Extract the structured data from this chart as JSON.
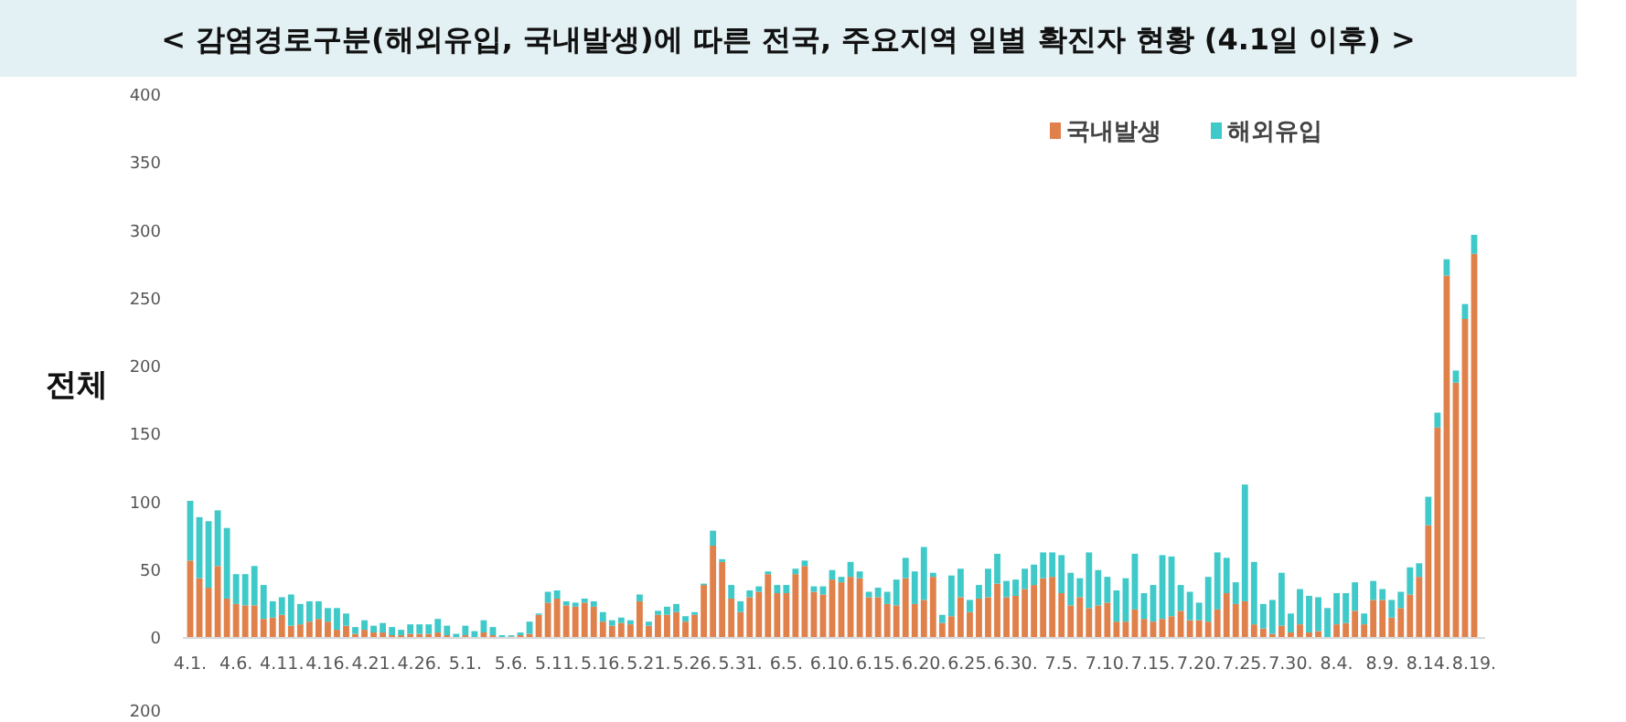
{
  "chart_data": {
    "type": "bar",
    "stacked": true,
    "title": "< 감염경로구분(해외유입, 국내발생)에 따른 전국, 주요지역 일별 확진자 현황 (4.1일 이후) >",
    "ylabel": "전체",
    "categories": [
      "4.1.",
      null,
      null,
      null,
      null,
      "4.6.",
      null,
      null,
      null,
      null,
      "4.11.",
      null,
      null,
      null,
      null,
      "4.16.",
      null,
      null,
      null,
      null,
      "4.21.",
      null,
      null,
      null,
      null,
      "4.26.",
      null,
      null,
      null,
      null,
      "5.1.",
      null,
      null,
      null,
      null,
      "5.6.",
      null,
      null,
      null,
      null,
      "5.11.",
      null,
      null,
      null,
      null,
      "5.16.",
      null,
      null,
      null,
      null,
      "5.21.",
      null,
      null,
      null,
      null,
      "5.26.",
      null,
      null,
      null,
      null,
      "5.31.",
      null,
      null,
      null,
      null,
      "6.5.",
      null,
      null,
      null,
      null,
      "6.10.",
      null,
      null,
      null,
      null,
      "6.15.",
      null,
      null,
      null,
      null,
      "6.20.",
      null,
      null,
      null,
      null,
      "6.25.",
      null,
      null,
      null,
      null,
      "6.30.",
      null,
      null,
      null,
      null,
      "7.5.",
      null,
      null,
      null,
      null,
      "7.10.",
      null,
      null,
      null,
      null,
      "7.15.",
      null,
      null,
      null,
      null,
      "7.20.",
      null,
      null,
      null,
      null,
      "7.25.",
      null,
      null,
      null,
      null,
      "7.30.",
      null,
      null,
      null,
      null,
      "8.4.",
      null,
      null,
      null,
      null,
      "8.9.",
      null,
      null,
      null,
      null,
      "8.14.",
      null,
      null,
      null,
      null,
      "8.19."
    ],
    "series": [
      {
        "name": "국내발생",
        "color": "#e0804a",
        "values": [
          57,
          44,
          37,
          53,
          29,
          25,
          24,
          24,
          14,
          15,
          17,
          9,
          10,
          12,
          14,
          12,
          6,
          9,
          3,
          6,
          4,
          4,
          2,
          2,
          3,
          3,
          3,
          4,
          2,
          null,
          2,
          null,
          4,
          2,
          null,
          1,
          2,
          3,
          17,
          26,
          29,
          24,
          23,
          26,
          23,
          12,
          9,
          11,
          10,
          27,
          9,
          17,
          17,
          19,
          12,
          17,
          39,
          68,
          56,
          29,
          19,
          30,
          34,
          47,
          33,
          33,
          47,
          53,
          34,
          32,
          43,
          41,
          45,
          44,
          30,
          30,
          25,
          24,
          44,
          25,
          28,
          45,
          11,
          16,
          30,
          19,
          29,
          30,
          40,
          30,
          31,
          36,
          39,
          44,
          45,
          33,
          24,
          30,
          22,
          24,
          26,
          12,
          12,
          21,
          14,
          12,
          14,
          16,
          20,
          13,
          13,
          12,
          21,
          33,
          25,
          27,
          10,
          7,
          3,
          9,
          4,
          10,
          4,
          5,
          null,
          10,
          11,
          20,
          10,
          28,
          28,
          15,
          22,
          32,
          45,
          83,
          155,
          267,
          188,
          235,
          283
        ]
      },
      {
        "name": "해외유입",
        "color": "#3fc9c9",
        "values": [
          44,
          45,
          49,
          41,
          52,
          22,
          23,
          29,
          25,
          12,
          13,
          23,
          15,
          15,
          13,
          10,
          16,
          9,
          5,
          7,
          5,
          7,
          6,
          4,
          7,
          7,
          7,
          10,
          7,
          3,
          7,
          5,
          9,
          6,
          2,
          1,
          2,
          9,
          1,
          8,
          6,
          3,
          3,
          3,
          4,
          7,
          4,
          4,
          3,
          5,
          3,
          3,
          6,
          6,
          4,
          2,
          1,
          11,
          2,
          10,
          8,
          5,
          4,
          2,
          6,
          6,
          4,
          4,
          4,
          6,
          7,
          4,
          11,
          5,
          4,
          7,
          9,
          19,
          15,
          24,
          39,
          3,
          6,
          30,
          21,
          9,
          10,
          21,
          22,
          12,
          12,
          15,
          15,
          19,
          18,
          28,
          24,
          14,
          41,
          26,
          19,
          23,
          32,
          41,
          19,
          27,
          47,
          44,
          19,
          21,
          13,
          33,
          42,
          26,
          16,
          86,
          46,
          18,
          25,
          39,
          14,
          26,
          27,
          25,
          22,
          23,
          22,
          21,
          8,
          14,
          8,
          13,
          12,
          20,
          10,
          21,
          11,
          12,
          9,
          11,
          14
        ]
      }
    ],
    "ylim": [
      0,
      400
    ],
    "yticks": [
      0,
      50,
      100,
      150,
      200,
      250,
      300,
      350,
      400
    ],
    "grid": false,
    "legend": "top right",
    "annotations": [
      "200"
    ]
  }
}
